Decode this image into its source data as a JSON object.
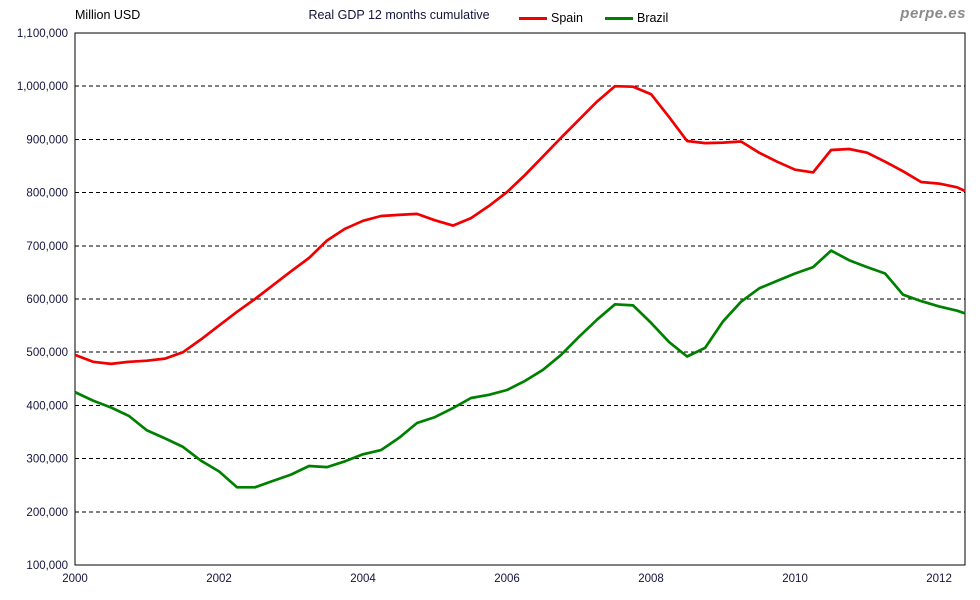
{
  "header": {
    "units_label": "Million USD",
    "title": "Real GDP 12 months cumulative",
    "watermark": "perpe.es"
  },
  "legend": [
    {
      "label": "Spain",
      "color": "#f00000"
    },
    {
      "label": "Brazil",
      "color": "#008000"
    }
  ],
  "colors": {
    "spain_line": "#f00000",
    "brazil_line": "#008000",
    "plot_border": "#000000",
    "gridline": "#000000",
    "tick_label": "#14143c",
    "watermark": "#8b8b8b"
  },
  "chart_data": {
    "type": "line",
    "title": "Real GDP 12 months cumulative",
    "ylabel": "Million USD",
    "legend_position": "top",
    "grid": "horizontal-dashed",
    "x_axis": {
      "start": 2000,
      "end": 2012.36,
      "ticks": [
        2000,
        2002,
        2004,
        2006,
        2008,
        2010,
        2012
      ]
    },
    "y_axis": {
      "min": 100000,
      "max": 1100000,
      "tick_step": 100000,
      "ticks": [
        100000,
        200000,
        300000,
        400000,
        500000,
        600000,
        700000,
        800000,
        900000,
        1000000,
        1100000
      ]
    },
    "x": [
      2000.0,
      2000.25,
      2000.5,
      2000.75,
      2001.0,
      2001.25,
      2001.5,
      2001.75,
      2002.0,
      2002.25,
      2002.5,
      2002.75,
      2003.0,
      2003.25,
      2003.5,
      2003.75,
      2004.0,
      2004.25,
      2004.5,
      2004.75,
      2005.0,
      2005.25,
      2005.5,
      2005.75,
      2006.0,
      2006.25,
      2006.5,
      2006.75,
      2007.0,
      2007.25,
      2007.5,
      2007.75,
      2008.0,
      2008.25,
      2008.5,
      2008.75,
      2009.0,
      2009.25,
      2009.5,
      2009.75,
      2010.0,
      2010.25,
      2010.5,
      2010.75,
      2011.0,
      2011.25,
      2011.5,
      2011.75,
      2012.0,
      2012.25,
      2012.36
    ],
    "series": [
      {
        "name": "Spain",
        "color": "#f00000",
        "values": [
          495000,
          482000,
          478000,
          482000,
          484000,
          488000,
          500000,
          524000,
          550000,
          576000,
          600000,
          626000,
          652000,
          677000,
          710000,
          732000,
          747000,
          756000,
          758000,
          760000,
          748000,
          738000,
          752000,
          775000,
          801000,
          833000,
          868000,
          903000,
          937000,
          971000,
          1000000,
          999000,
          985000,
          942000,
          897000,
          893000,
          894000,
          896000,
          875000,
          858000,
          843000,
          838000,
          880000,
          882000,
          875000,
          858000,
          840000,
          820000,
          817000,
          810000,
          803000
        ]
      },
      {
        "name": "Brazil",
        "color": "#008000",
        "values": [
          425000,
          409000,
          396000,
          380000,
          353000,
          338000,
          322000,
          296000,
          276000,
          246000,
          246000,
          258000,
          270000,
          286000,
          284000,
          295000,
          308000,
          316000,
          339000,
          367000,
          378000,
          395000,
          414000,
          420000,
          429000,
          446000,
          467000,
          495000,
          529000,
          561000,
          590000,
          588000,
          555000,
          519000,
          492000,
          508000,
          558000,
          595000,
          620000,
          634000,
          648000,
          660000,
          691000,
          673000,
          660000,
          648000,
          608000,
          596000,
          586000,
          578000,
          573000
        ]
      }
    ]
  }
}
